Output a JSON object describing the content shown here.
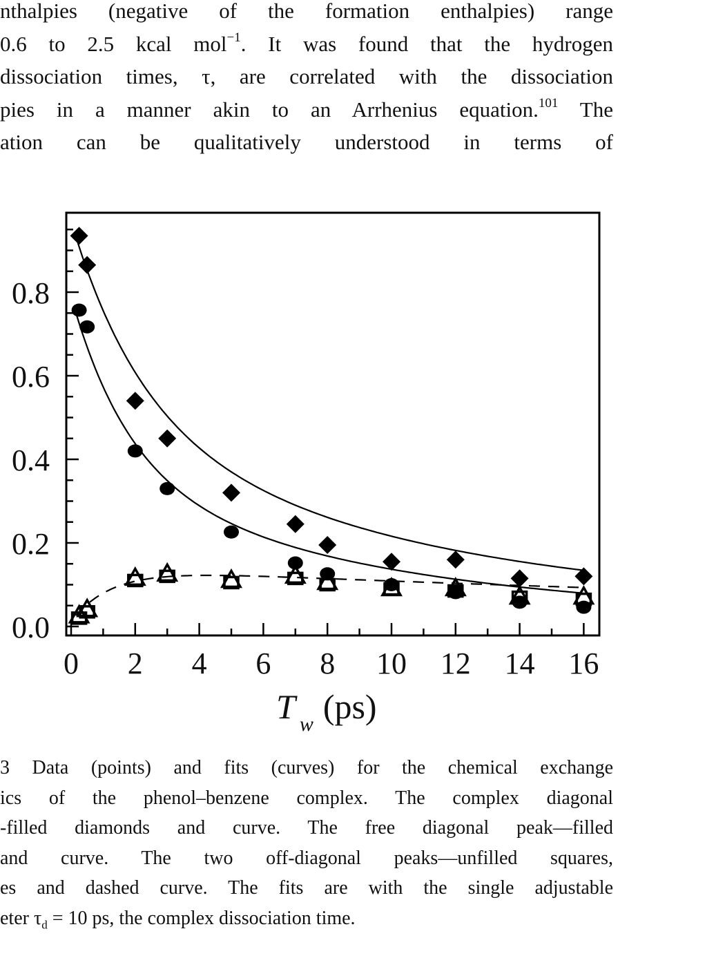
{
  "body_text": {
    "lines": [
      "nthalpies (negative of the formation enthalpies) range",
      "0.6 to 2.5 kcal mol",
      "dissociation times, τ, are correlated with the dissociation",
      "pies in a manner akin to an Arrhenius equation.",
      "ation can be qualitatively understood in terms of"
    ],
    "line2_sup": "−1",
    "line2_rest": ". It was found that the hydrogen",
    "line4_sup": "101",
    "line4_rest": " The"
  },
  "caption": {
    "lines": [
      "3   Data (points) and fits (curves) for the chemical exchange",
      "ics of the phenol–benzene complex. The complex diagonal",
      "-filled diamonds and curve. The free diagonal peak—filled",
      " and curve. The two off-diagonal peaks—unfilled squares,",
      "es and dashed curve. The fits are with the single adjustable"
    ],
    "last_line_prefix": "eter τ",
    "last_line_sub": "d",
    "last_line_rest": " = 10 ps, the complex dissociation time."
  },
  "chart_data": {
    "type": "scatter",
    "title": "",
    "xlabel": "T_w (ps)",
    "xlabel_main": "T",
    "xlabel_sub": "w",
    "xlabel_unit": "(ps)",
    "ylabel": "",
    "xlim": [
      0,
      16
    ],
    "ylim": [
      0.0,
      0.95
    ],
    "x_ticks": [
      0,
      2,
      4,
      6,
      8,
      10,
      12,
      14,
      16
    ],
    "y_ticks": [
      0.0,
      0.2,
      0.4,
      0.6,
      0.8
    ],
    "y_tick_labels": [
      "0.0",
      "0.2",
      "0.4",
      "0.6",
      "0.8"
    ],
    "grid": false,
    "legend": "none (described in caption)",
    "x": [
      0.25,
      0.5,
      2,
      3,
      5,
      7,
      8,
      10,
      12,
      14,
      16
    ],
    "series": [
      {
        "name": "Complex diagonal peak",
        "marker": "filled-diamond",
        "fit": "solid",
        "values": [
          0.935,
          0.865,
          0.54,
          0.45,
          0.32,
          0.245,
          0.195,
          0.155,
          0.16,
          0.115,
          0.12
        ]
      },
      {
        "name": "Free diagonal peak",
        "marker": "filled-circle",
        "fit": "solid",
        "values": [
          0.757,
          0.717,
          0.42,
          0.33,
          0.226,
          0.152,
          0.126,
          0.1,
          0.081,
          0.058,
          0.046
        ]
      },
      {
        "name": "Off-diagonal peak 1",
        "marker": "unfilled-square",
        "fit": "dashed",
        "values": [
          0.02,
          0.035,
          0.11,
          0.12,
          0.105,
          0.115,
          0.1,
          0.09,
          0.085,
          0.07,
          0.065
        ]
      },
      {
        "name": "Off-diagonal peak 2",
        "marker": "unfilled-triangle",
        "fit": "dashed",
        "values": [
          0.025,
          0.04,
          0.115,
          0.125,
          0.11,
          0.12,
          0.105,
          0.09,
          0.09,
          0.07,
          0.07
        ]
      }
    ],
    "annotations": [
      "fit parameter τd = 10 ps"
    ]
  }
}
